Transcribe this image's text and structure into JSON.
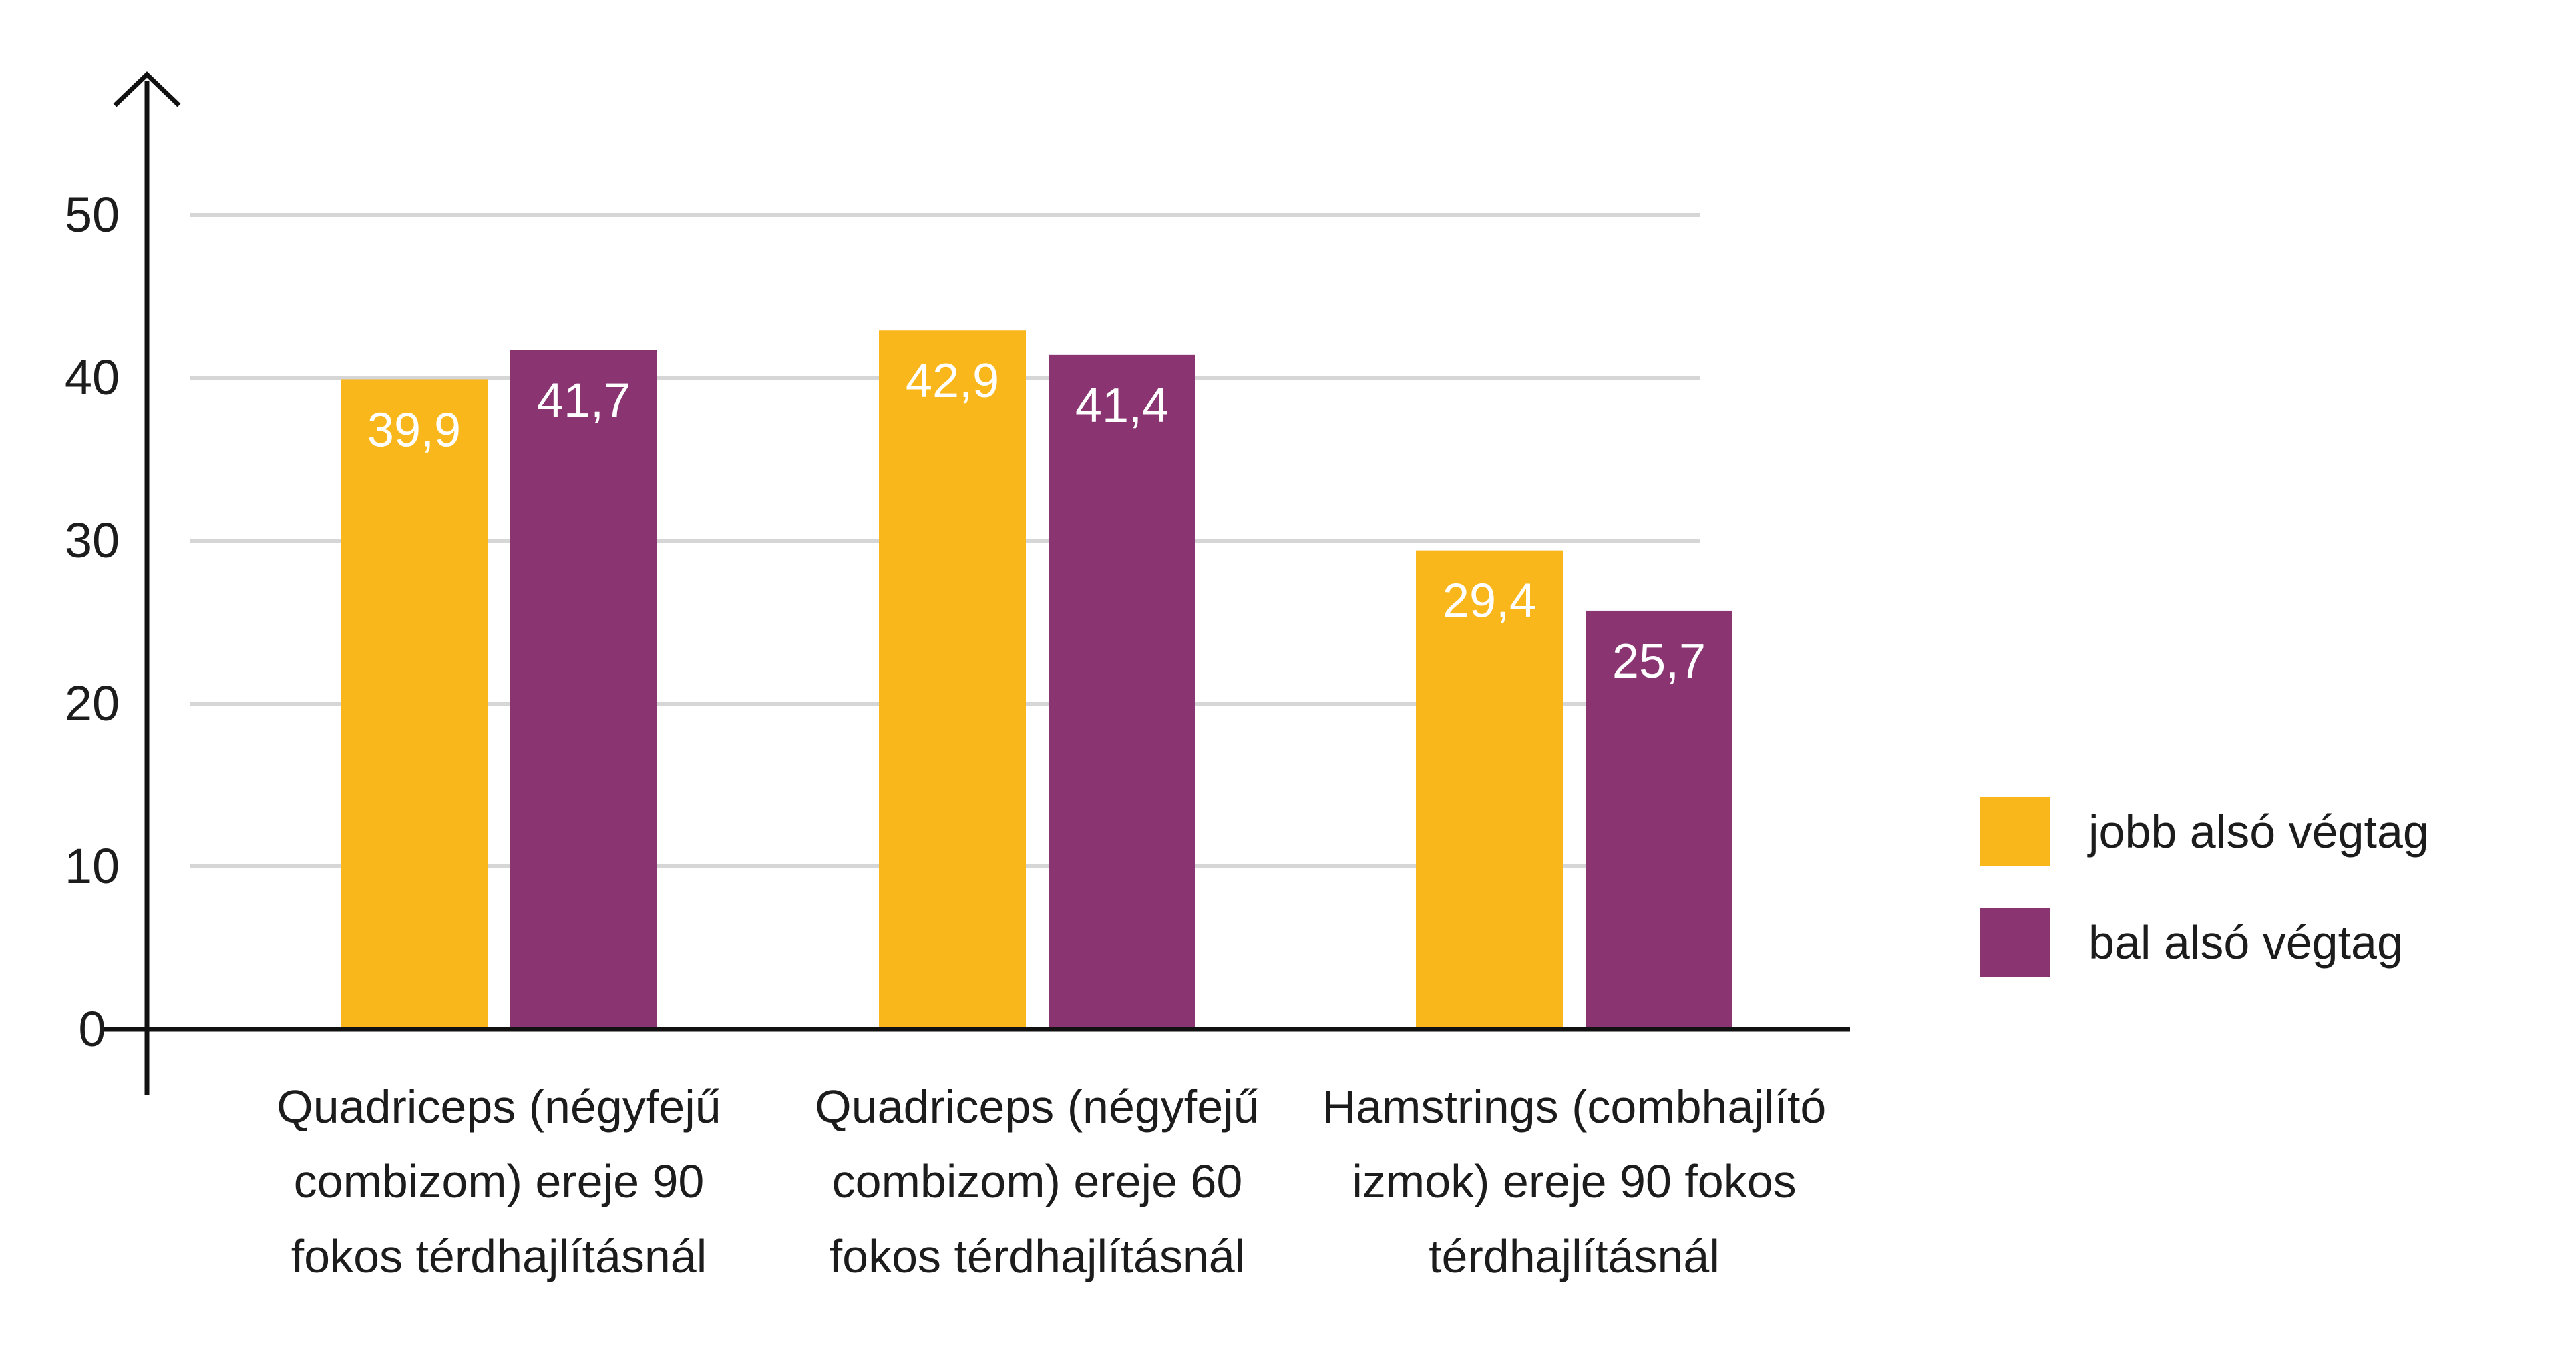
{
  "chart_data": {
    "type": "bar",
    "title": "",
    "xlabel": "",
    "ylabel": "",
    "ylim": [
      0,
      55
    ],
    "yticks": [
      0,
      10,
      20,
      30,
      40,
      50
    ],
    "grid": true,
    "legend_position": "right",
    "categories": [
      [
        "Quadriceps (négyfejű",
        "combizom) ereje 90",
        "fokos térdhajlításnál"
      ],
      [
        "Quadriceps (négyfejű",
        "combizom) ereje 60",
        "fokos térdhajlításnál"
      ],
      [
        "Hamstrings (combhajlító",
        "izmok) ereje 90 fokos",
        "térdhajlításnál"
      ]
    ],
    "series": [
      {
        "name": "jobb alsó végtag",
        "color": "#F9B71B",
        "values": [
          39.9,
          42.9,
          29.4
        ],
        "labels": [
          "39,9",
          "42,9",
          "29,4"
        ]
      },
      {
        "name": "bal alsó végtag",
        "color": "#8A3571",
        "values": [
          41.7,
          41.4,
          25.7
        ],
        "labels": [
          "41,7",
          "41,4",
          "25,7"
        ]
      }
    ]
  }
}
